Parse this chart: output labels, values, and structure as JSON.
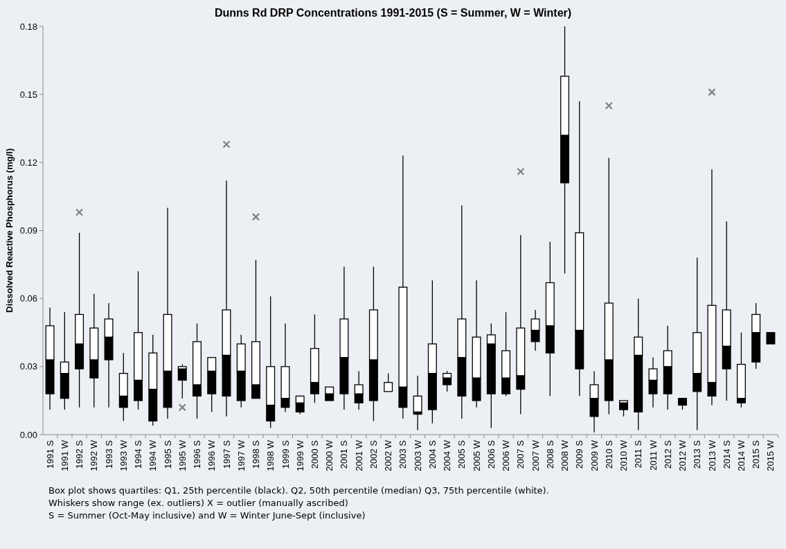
{
  "chart_data": {
    "type": "box",
    "title": "Dunns Rd DRP Concentrations 1991-2015 (S = Summer, W = Winter)",
    "ylabel": "Dissolved Reactive Phosphorus (mg/l)",
    "categories": [
      "1991 S",
      "1991 W",
      "1992 S",
      "1992 W",
      "1993 S",
      "1993 W",
      "1994 S",
      "1994 W",
      "1995 S",
      "1995 W",
      "1996 S",
      "1996 W",
      "1997 S",
      "1997 W",
      "1998 S",
      "1998 W",
      "1999 S",
      "1999 W",
      "2000 S",
      "2000 W",
      "2001 S",
      "2001 W",
      "2002 S",
      "2002 W",
      "2003 S",
      "2003 W",
      "2004 S",
      "2004 W",
      "2005 S",
      "2005 W",
      "2006 S",
      "2006 W",
      "2007 S",
      "2007 W",
      "2008 S",
      "2008 W",
      "2009 S",
      "2009 W",
      "2010 S",
      "2010 W",
      "2011 S",
      "2011 W",
      "2012 S",
      "2012 W",
      "2013 S",
      "2013 W",
      "2014 S",
      "2014 W",
      "2015 S",
      "2015 W"
    ],
    "series": [
      {
        "color": "#000000",
        "boxes": [
          {
            "low": 0.011,
            "q1": 0.018,
            "median": 0.033,
            "q3": 0.048,
            "high": 0.056
          },
          {
            "low": 0.011,
            "q1": 0.016,
            "median": 0.027,
            "q3": 0.032,
            "high": 0.054
          },
          {
            "low": 0.012,
            "q1": 0.029,
            "median": 0.04,
            "q3": 0.053,
            "high": 0.089,
            "outliers": [
              0.098
            ]
          },
          {
            "low": 0.012,
            "q1": 0.025,
            "median": 0.033,
            "q3": 0.047,
            "high": 0.062
          },
          {
            "low": 0.012,
            "q1": 0.033,
            "median": 0.043,
            "q3": 0.051,
            "high": 0.058
          },
          {
            "low": 0.006,
            "q1": 0.012,
            "median": 0.017,
            "q3": 0.027,
            "high": 0.036
          },
          {
            "low": 0.011,
            "q1": 0.015,
            "median": 0.024,
            "q3": 0.045,
            "high": 0.072
          },
          {
            "low": 0.004,
            "q1": 0.006,
            "median": 0.02,
            "q3": 0.036,
            "high": 0.044
          },
          {
            "low": 0.007,
            "q1": 0.012,
            "median": 0.028,
            "q3": 0.053,
            "high": 0.1
          },
          {
            "low": 0.016,
            "q1": 0.024,
            "median": 0.029,
            "q3": 0.03,
            "high": 0.031,
            "outliers": [
              0.012
            ]
          },
          {
            "low": 0.007,
            "q1": 0.017,
            "median": 0.022,
            "q3": 0.041,
            "high": 0.049
          },
          {
            "low": 0.01,
            "q1": 0.018,
            "median": 0.028,
            "q3": 0.034,
            "high": 0.034
          },
          {
            "low": 0.008,
            "q1": 0.017,
            "median": 0.035,
            "q3": 0.055,
            "high": 0.112,
            "outliers": [
              0.128
            ]
          },
          {
            "low": 0.012,
            "q1": 0.015,
            "median": 0.028,
            "q3": 0.04,
            "high": 0.044
          },
          {
            "low": 0.016,
            "q1": 0.016,
            "median": 0.022,
            "q3": 0.041,
            "high": 0.077,
            "outliers": [
              0.096
            ]
          },
          {
            "low": 0.003,
            "q1": 0.006,
            "median": 0.013,
            "q3": 0.03,
            "high": 0.061
          },
          {
            "low": 0.01,
            "q1": 0.012,
            "median": 0.016,
            "q3": 0.03,
            "high": 0.049
          },
          {
            "low": 0.009,
            "q1": 0.01,
            "median": 0.014,
            "q3": 0.017,
            "high": 0.017
          },
          {
            "low": 0.014,
            "q1": 0.018,
            "median": 0.023,
            "q3": 0.038,
            "high": 0.053
          },
          {
            "low": 0.015,
            "q1": 0.015,
            "median": 0.018,
            "q3": 0.021,
            "high": 0.021
          },
          {
            "low": 0.011,
            "q1": 0.018,
            "median": 0.034,
            "q3": 0.051,
            "high": 0.074
          },
          {
            "low": 0.011,
            "q1": 0.014,
            "median": 0.018,
            "q3": 0.022,
            "high": 0.028
          },
          {
            "low": 0.006,
            "q1": 0.015,
            "median": 0.033,
            "q3": 0.055,
            "high": 0.074
          },
          {
            "low": 0.019,
            "q1": 0.019,
            "median": 0.019,
            "q3": 0.023,
            "high": 0.027
          },
          {
            "low": 0.007,
            "q1": 0.012,
            "median": 0.021,
            "q3": 0.065,
            "high": 0.123
          },
          {
            "low": 0.002,
            "q1": 0.009,
            "median": 0.01,
            "q3": 0.017,
            "high": 0.026
          },
          {
            "low": 0.005,
            "q1": 0.011,
            "median": 0.027,
            "q3": 0.04,
            "high": 0.068
          },
          {
            "low": 0.019,
            "q1": 0.022,
            "median": 0.025,
            "q3": 0.027,
            "high": 0.028
          },
          {
            "low": 0.007,
            "q1": 0.017,
            "median": 0.034,
            "q3": 0.051,
            "high": 0.101
          },
          {
            "low": 0.012,
            "q1": 0.015,
            "median": 0.025,
            "q3": 0.043,
            "high": 0.068
          },
          {
            "low": 0.003,
            "q1": 0.018,
            "median": 0.04,
            "q3": 0.044,
            "high": 0.049
          },
          {
            "low": 0.017,
            "q1": 0.018,
            "median": 0.025,
            "q3": 0.037,
            "high": 0.054
          },
          {
            "low": 0.009,
            "q1": 0.02,
            "median": 0.026,
            "q3": 0.047,
            "high": 0.088,
            "outliers": [
              0.116
            ]
          },
          {
            "low": 0.037,
            "q1": 0.041,
            "median": 0.046,
            "q3": 0.051,
            "high": 0.055
          },
          {
            "low": 0.017,
            "q1": 0.036,
            "median": 0.048,
            "q3": 0.067,
            "high": 0.085
          },
          {
            "low": 0.071,
            "q1": 0.111,
            "median": 0.132,
            "q3": 0.158,
            "high": 0.18
          },
          {
            "low": 0.017,
            "q1": 0.029,
            "median": 0.046,
            "q3": 0.089,
            "high": 0.147
          },
          {
            "low": 0.001,
            "q1": 0.008,
            "median": 0.016,
            "q3": 0.022,
            "high": 0.028
          },
          {
            "low": 0.009,
            "q1": 0.015,
            "median": 0.033,
            "q3": 0.058,
            "high": 0.122,
            "outliers": [
              0.145
            ]
          },
          {
            "low": 0.008,
            "q1": 0.011,
            "median": 0.014,
            "q3": 0.015,
            "high": 0.015
          },
          {
            "low": 0.002,
            "q1": 0.01,
            "median": 0.035,
            "q3": 0.043,
            "high": 0.06
          },
          {
            "low": 0.012,
            "q1": 0.018,
            "median": 0.024,
            "q3": 0.029,
            "high": 0.034
          },
          {
            "low": 0.011,
            "q1": 0.018,
            "median": 0.03,
            "q3": 0.037,
            "high": 0.048
          },
          {
            "low": 0.011,
            "q1": 0.013,
            "median": 0.016,
            "q3": 0.016,
            "high": 0.016
          },
          {
            "low": 0.002,
            "q1": 0.019,
            "median": 0.027,
            "q3": 0.045,
            "high": 0.078
          },
          {
            "low": 0.013,
            "q1": 0.017,
            "median": 0.023,
            "q3": 0.057,
            "high": 0.117,
            "outliers": [
              0.151
            ]
          },
          {
            "low": 0.015,
            "q1": 0.029,
            "median": 0.039,
            "q3": 0.055,
            "high": 0.094
          },
          {
            "low": 0.012,
            "q1": 0.014,
            "median": 0.016,
            "q3": 0.031,
            "high": 0.045
          },
          {
            "low": 0.029,
            "q1": 0.032,
            "median": 0.045,
            "q3": 0.053,
            "high": 0.058
          },
          {
            "low": 0.04,
            "q1": 0.04,
            "median": 0.045,
            "q3": 0.045,
            "high": 0.045
          }
        ]
      }
    ],
    "ylim": [
      0,
      0.18
    ],
    "yticks": [
      {
        "value": 0,
        "label": "0.00"
      },
      {
        "value": 0.03,
        "label": "0.03"
      },
      {
        "value": 0.06,
        "label": "0.06"
      },
      {
        "value": 0.09,
        "label": "0.09"
      },
      {
        "value": 0.12,
        "label": "0.12"
      },
      {
        "value": 0.15,
        "label": "0.15"
      },
      {
        "value": 0.18,
        "label": "0.18"
      }
    ],
    "grid": false,
    "marker": "cross",
    "annotations": [
      "Box plot shows quartiles: Q1, 25th percentile (black). Q2, 50th percentile (median) Q3, 75th percentile (white).",
      "Whiskers show range (ex. outliers) X = outlier (manually ascribed)",
      "S = Summer (Oct-May inclusive) and W = Winter June-Sept (inclusive)"
    ]
  }
}
